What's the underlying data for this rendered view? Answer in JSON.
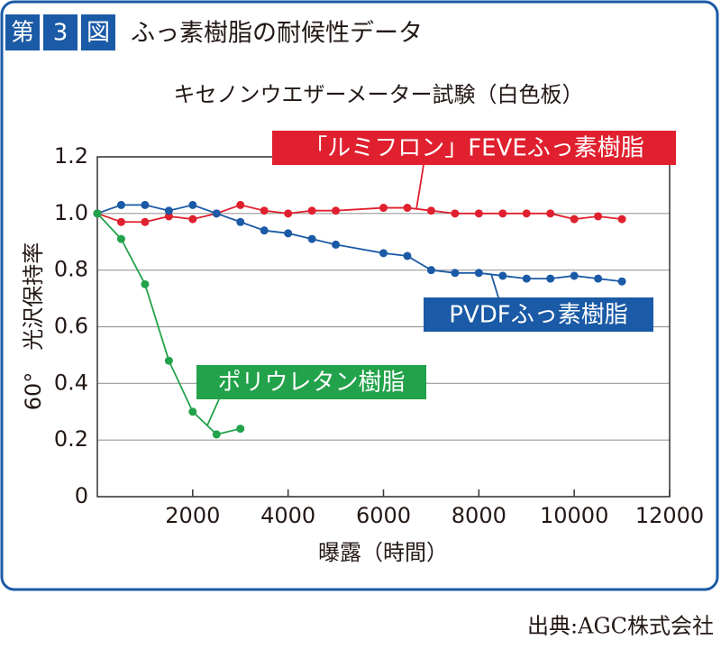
{
  "chart_data": {
    "type": "line",
    "figure_label": [
      "第",
      "3",
      "図"
    ],
    "title": "ふっ素樹脂の耐候性データ",
    "subtitle": "キセノンウエザーメーター試験（白色板）",
    "x_label": "曝露（時間）",
    "y_label": "60°　光沢保持率",
    "source": "出典:AGC株式会社",
    "xlim": [
      0,
      12000
    ],
    "xticks": [
      2000,
      4000,
      6000,
      8000,
      10000,
      12000
    ],
    "ylim": [
      0,
      1.2
    ],
    "yticks": [
      0,
      0.2,
      0.4,
      0.6,
      0.8,
      {
        "value": 1,
        "label": "1.0"
      },
      1.2
    ],
    "grid": true,
    "series": [
      {
        "name": "「ルミフロン」FEVEふっ素樹脂",
        "color": "#e0202e",
        "x": [
          0,
          500,
          1000,
          1500,
          2000,
          2500,
          3000,
          3500,
          4000,
          4500,
          5000,
          6000,
          6500,
          7000,
          7500,
          8000,
          8500,
          9000,
          9500,
          10000,
          10500,
          11000
        ],
        "values": [
          1.0,
          0.97,
          0.97,
          0.99,
          0.98,
          1.0,
          1.03,
          1.01,
          1.0,
          1.01,
          1.01,
          1.02,
          1.02,
          1.01,
          1.0,
          1.0,
          1.0,
          1.0,
          1.0,
          0.98,
          0.99,
          0.98
        ]
      },
      {
        "name": "PVDFふっ素樹脂",
        "color": "#1a5aa6",
        "x": [
          0,
          500,
          1000,
          1500,
          2000,
          2500,
          3000,
          3500,
          4000,
          4500,
          5000,
          6000,
          6500,
          7000,
          7500,
          8000,
          8500,
          9000,
          9500,
          10000,
          10500,
          11000
        ],
        "values": [
          1.0,
          1.03,
          1.03,
          1.01,
          1.03,
          1.0,
          0.97,
          0.94,
          0.93,
          0.91,
          0.89,
          0.86,
          0.85,
          0.8,
          0.79,
          0.79,
          0.78,
          0.77,
          0.77,
          0.78,
          0.77,
          0.76
        ]
      },
      {
        "name": "ポリウレタン樹脂",
        "color": "#22a24a",
        "x": [
          0,
          500,
          1000,
          1500,
          2000,
          2500,
          3000
        ],
        "values": [
          1.0,
          0.91,
          0.75,
          0.48,
          0.3,
          0.22,
          0.24
        ]
      }
    ]
  }
}
